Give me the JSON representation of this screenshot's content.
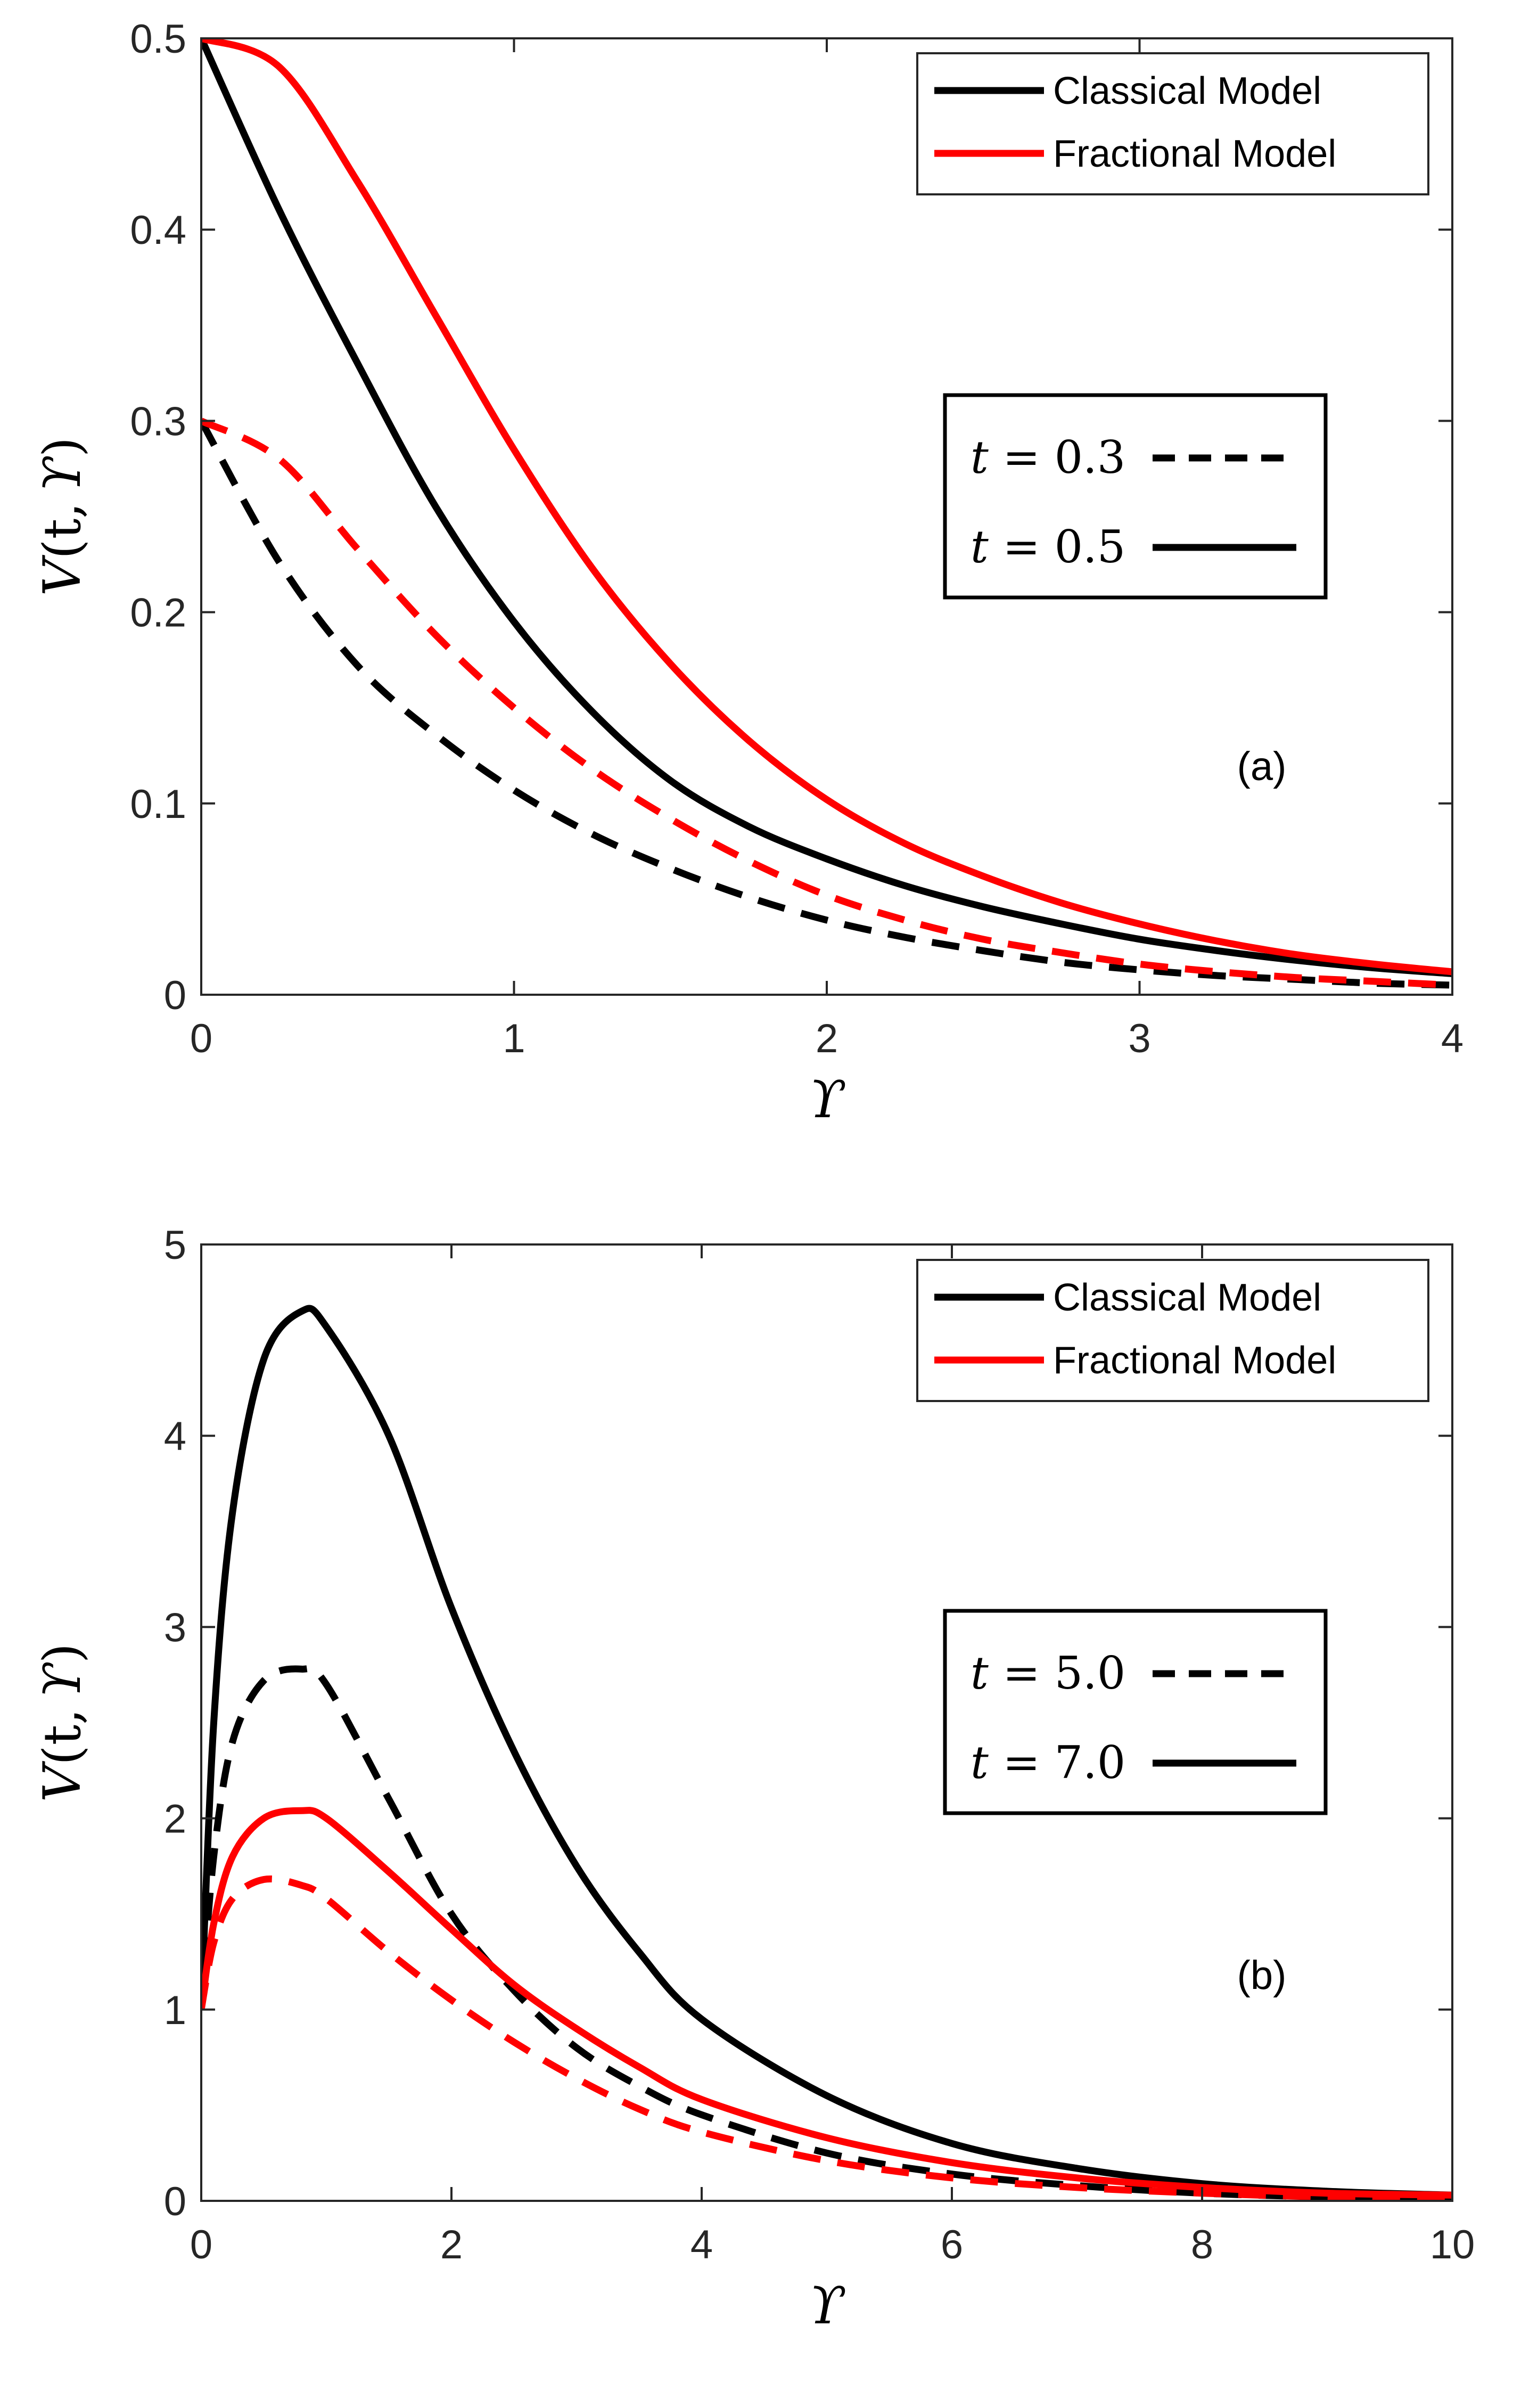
{
  "colors": {
    "classical": "#000000",
    "fractional": "#ff0000"
  },
  "chart_data": [
    {
      "type": "line",
      "panel_label": "(a)",
      "xlabel": "ϒ",
      "ylabel_parts": [
        "V",
        "(t, ",
        "ϒ",
        ")"
      ],
      "xlim": [
        0,
        4
      ],
      "ylim": [
        0,
        0.5
      ],
      "x_ticks": [
        0,
        1,
        2,
        3,
        4
      ],
      "x_tick_labels": [
        "0",
        "1",
        "2",
        "3",
        "4"
      ],
      "y_ticks": [
        0,
        0.1,
        0.2,
        0.3,
        0.4,
        0.5
      ],
      "y_tick_labels": [
        "0",
        "0.1",
        "0.2",
        "0.3",
        "0.4",
        "0.5"
      ],
      "legend_models": [
        "Classical Model",
        "Fractional Model"
      ],
      "legend_times": [
        {
          "prefix": "t",
          "value": "0.3",
          "style": "dashed"
        },
        {
          "prefix": "t",
          "value": "0.5",
          "style": "solid"
        }
      ],
      "x": [
        0,
        0.25,
        0.5,
        0.75,
        1.0,
        1.25,
        1.5,
        1.75,
        2.0,
        2.25,
        2.5,
        2.75,
        3.0,
        3.25,
        3.5,
        3.75,
        4.0
      ],
      "series": [
        {
          "name": "Classical Model, t = 0.5",
          "model": "classical",
          "style": "solid",
          "values": [
            0.5,
            0.41,
            0.33,
            0.255,
            0.195,
            0.148,
            0.112,
            0.088,
            0.071,
            0.057,
            0.046,
            0.037,
            0.029,
            0.023,
            0.018,
            0.014,
            0.011
          ]
        },
        {
          "name": "Fractional Model, t = 0.5",
          "model": "fractional",
          "style": "solid",
          "values": [
            0.5,
            0.485,
            0.425,
            0.355,
            0.285,
            0.223,
            0.173,
            0.133,
            0.102,
            0.079,
            0.062,
            0.048,
            0.037,
            0.028,
            0.021,
            0.016,
            0.012
          ]
        },
        {
          "name": "Classical Model, t = 0.3",
          "model": "classical",
          "style": "dashed",
          "values": [
            0.3,
            0.226,
            0.172,
            0.136,
            0.107,
            0.084,
            0.066,
            0.051,
            0.039,
            0.03,
            0.023,
            0.017,
            0.013,
            0.01,
            0.008,
            0.006,
            0.005
          ]
        },
        {
          "name": "Fractional Model, t = 0.3",
          "model": "fractional",
          "style": "dashed",
          "values": [
            0.3,
            0.28,
            0.233,
            0.188,
            0.15,
            0.118,
            0.092,
            0.07,
            0.052,
            0.039,
            0.029,
            0.022,
            0.016,
            0.012,
            0.009,
            0.007,
            0.005
          ]
        }
      ]
    },
    {
      "type": "line",
      "panel_label": "(b)",
      "xlabel": "ϒ",
      "ylabel_parts": [
        "V",
        "(t, ",
        "ϒ",
        ")"
      ],
      "xlim": [
        0,
        10
      ],
      "ylim": [
        0,
        5
      ],
      "x_ticks": [
        0,
        2,
        4,
        6,
        8,
        10
      ],
      "x_tick_labels": [
        "0",
        "2",
        "4",
        "6",
        "8",
        "10"
      ],
      "y_ticks": [
        0,
        1,
        2,
        3,
        4,
        5
      ],
      "y_tick_labels": [
        "0",
        "1",
        "2",
        "3",
        "4",
        "5"
      ],
      "legend_models": [
        "Classical Model",
        "Fractional Model"
      ],
      "legend_times": [
        {
          "prefix": "t",
          "value": "5.0",
          "style": "dashed"
        },
        {
          "prefix": "t",
          "value": "7.0",
          "style": "solid"
        }
      ],
      "x": [
        0,
        0.1,
        0.25,
        0.5,
        0.8,
        1.0,
        1.5,
        2.0,
        2.5,
        3.0,
        3.5,
        4.0,
        5.0,
        6.0,
        7.0,
        8.0,
        9.0,
        10.0
      ],
      "series": [
        {
          "name": "Classical Model, t = 7.0",
          "model": "classical",
          "style": "solid",
          "values": [
            1.0,
            2.5,
            3.6,
            4.4,
            4.65,
            4.57,
            4.0,
            3.1,
            2.35,
            1.75,
            1.3,
            0.95,
            0.55,
            0.3,
            0.17,
            0.09,
            0.05,
            0.03
          ]
        },
        {
          "name": "Classical Model, t = 5.0",
          "model": "classical",
          "style": "dashed",
          "values": [
            1.0,
            1.8,
            2.4,
            2.72,
            2.78,
            2.7,
            2.1,
            1.5,
            1.1,
            0.8,
            0.6,
            0.45,
            0.25,
            0.14,
            0.08,
            0.04,
            0.02,
            0.01
          ]
        },
        {
          "name": "Fractional Model, t = 7.0",
          "model": "fractional",
          "style": "solid",
          "values": [
            1.0,
            1.45,
            1.8,
            2.0,
            2.04,
            2.0,
            1.72,
            1.42,
            1.13,
            0.9,
            0.7,
            0.53,
            0.33,
            0.2,
            0.12,
            0.07,
            0.04,
            0.03
          ]
        },
        {
          "name": "Fractional Model, t = 5.0",
          "model": "fractional",
          "style": "dashed",
          "values": [
            1.0,
            1.35,
            1.58,
            1.68,
            1.65,
            1.58,
            1.3,
            1.05,
            0.83,
            0.64,
            0.48,
            0.36,
            0.21,
            0.12,
            0.07,
            0.04,
            0.02,
            0.01
          ]
        }
      ]
    }
  ]
}
